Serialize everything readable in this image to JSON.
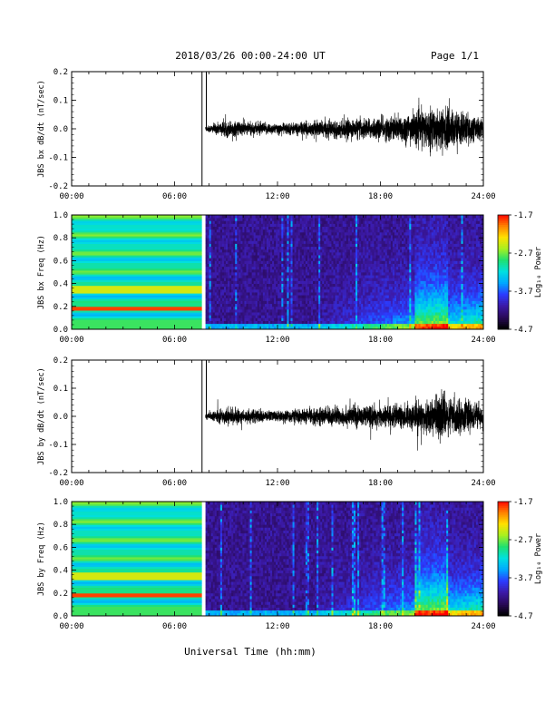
{
  "header": {
    "title": "2018/03/26  00:00-24:00 UT",
    "page": "Page 1/1"
  },
  "xaxis": {
    "ticks": [
      0,
      6,
      12,
      18,
      24
    ],
    "tick_labels": [
      "00:00",
      "06:00",
      "12:00",
      "18:00",
      "24:00"
    ],
    "label": "Universal Time (hh:mm)",
    "range": [
      0,
      24
    ]
  },
  "colorbar": {
    "tick_labels": [
      "-1.7",
      "-2.7",
      "-3.7",
      "-4.7"
    ],
    "ticks": [
      -1.7,
      -2.7,
      -3.7,
      -4.7
    ],
    "range": [
      -4.7,
      -1.7
    ],
    "label": "Log₁₀ Power"
  },
  "chart_data": [
    {
      "type": "line",
      "ylabel": "JBS bx dB/dt (nT/sec)",
      "ylim": [
        -0.2,
        0.2
      ],
      "yticks": [
        -0.2,
        -0.1,
        0.0,
        0.1,
        0.2
      ],
      "ytick_labels": [
        "-0.2",
        "-0.1",
        "0.0",
        "0.1",
        "0.2"
      ],
      "data_start_hour": 7.8,
      "spike_hours": [
        7.6,
        7.85
      ],
      "envelope": {
        "hours": [
          7.8,
          9,
          12,
          15,
          18,
          20,
          21.5,
          24
        ],
        "amplitude": [
          0.01,
          0.03,
          0.02,
          0.03,
          0.04,
          0.06,
          0.08,
          0.04
        ]
      }
    },
    {
      "type": "heatmap",
      "ylabel": "JBS bx Freq (Hz)",
      "ylim": [
        0.0,
        1.0
      ],
      "yticks": [
        0.0,
        0.2,
        0.4,
        0.6,
        0.8,
        1.0
      ],
      "ytick_labels": [
        "0.0",
        "0.2",
        "0.4",
        "0.6",
        "0.8",
        "1.0"
      ],
      "fill_end_hour": 7.6,
      "data_start_hour": 7.8,
      "colorscale": [
        "#000000",
        "#2a0a5a",
        "#3c1aa8",
        "#2b3cff",
        "#00a8ff",
        "#00e0e0",
        "#20e070",
        "#a8f020",
        "#ffe000",
        "#ff8000",
        "#ff0000"
      ],
      "zlim": [
        -4.7,
        -1.7
      ]
    },
    {
      "type": "line",
      "ylabel": "JBS by dB/dt (nT/sec)",
      "ylim": [
        -0.2,
        0.2
      ],
      "yticks": [
        -0.2,
        -0.1,
        0.0,
        0.1,
        0.2
      ],
      "ytick_labels": [
        "-0.2",
        "-0.1",
        "0.0",
        "0.1",
        "0.2"
      ],
      "data_start_hour": 7.8,
      "spike_hours": [
        7.6,
        7.85
      ],
      "envelope": {
        "hours": [
          7.8,
          9,
          12,
          15,
          18,
          20,
          21.5,
          24
        ],
        "amplitude": [
          0.01,
          0.03,
          0.02,
          0.035,
          0.04,
          0.05,
          0.08,
          0.04
        ]
      }
    },
    {
      "type": "heatmap",
      "ylabel": "JBS by Freq (Hz)",
      "ylim": [
        0.0,
        1.0
      ],
      "yticks": [
        0.0,
        0.2,
        0.4,
        0.6,
        0.8,
        1.0
      ],
      "ytick_labels": [
        "0.0",
        "0.2",
        "0.4",
        "0.6",
        "0.8",
        "1.0"
      ],
      "fill_end_hour": 7.6,
      "data_start_hour": 7.8,
      "colorscale": [
        "#000000",
        "#2a0a5a",
        "#3c1aa8",
        "#2b3cff",
        "#00a8ff",
        "#00e0e0",
        "#20e070",
        "#a8f020",
        "#ffe000",
        "#ff8000",
        "#ff0000"
      ],
      "zlim": [
        -4.7,
        -1.7
      ]
    }
  ]
}
